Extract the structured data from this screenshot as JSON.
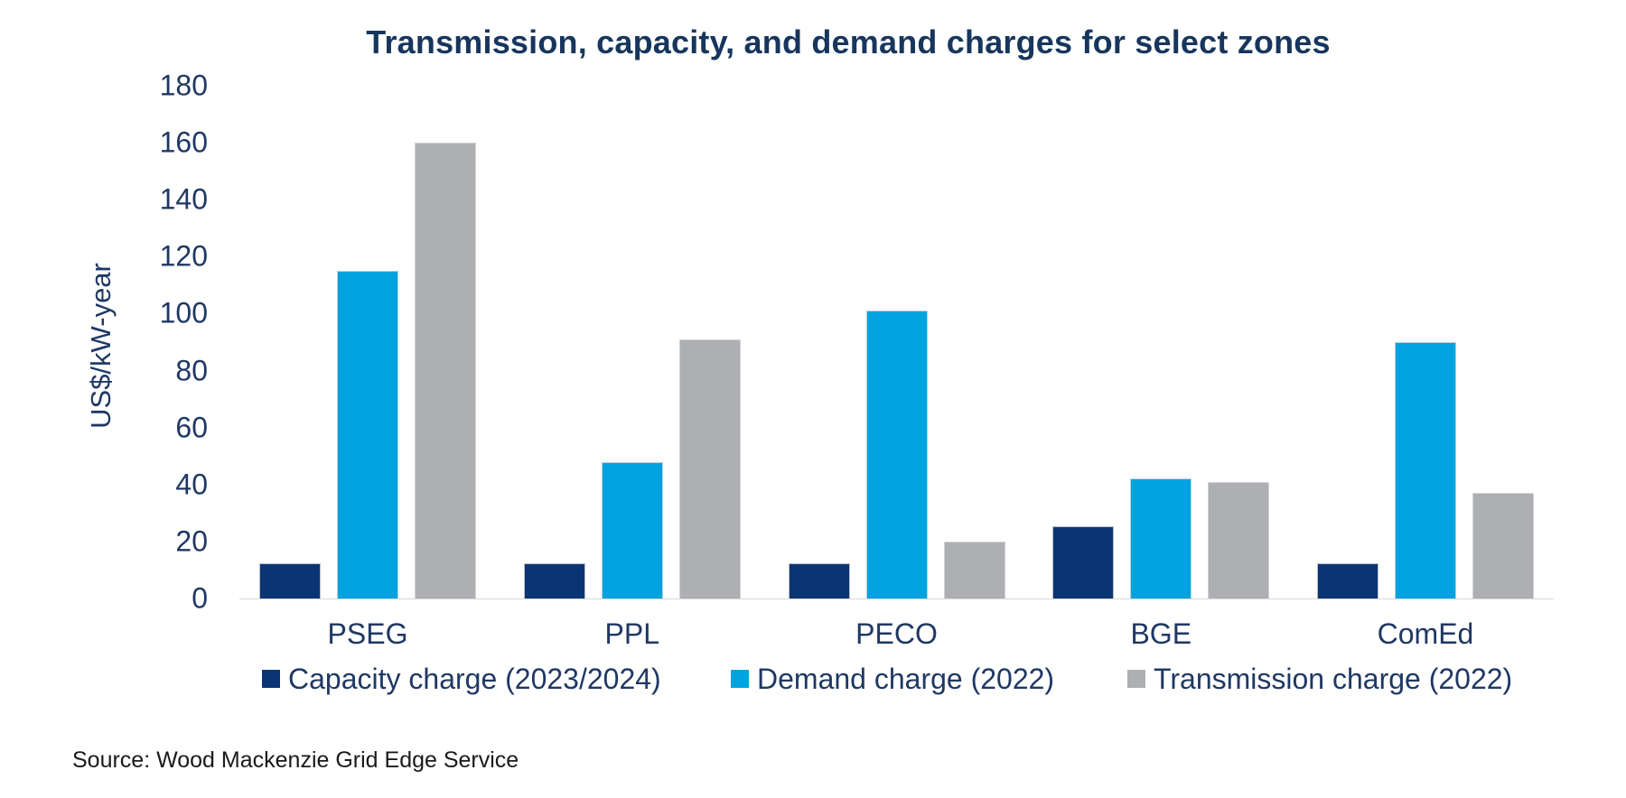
{
  "chart_data": {
    "type": "bar",
    "title": "Transmission, capacity, and demand charges for select zones",
    "ylabel": "US$/kW-year",
    "xlabel": "",
    "categories": [
      "PSEG",
      "PPL",
      "PECO",
      "BGE",
      "ComEd"
    ],
    "series": [
      {
        "name": "Capacity charge (2023/2024)",
        "color": "#0B3474",
        "values": [
          12.5,
          12.5,
          12.5,
          25.5,
          12.5
        ]
      },
      {
        "name": "Demand charge (2022)",
        "color": "#00A3E0",
        "values": [
          115,
          48,
          101,
          42,
          90
        ]
      },
      {
        "name": "Transmission charge (2022)",
        "color": "#AEAFB2",
        "values": [
          160,
          91,
          20,
          41,
          37
        ]
      }
    ],
    "ylim": [
      0,
      180
    ],
    "yticks": [
      0,
      20,
      40,
      60,
      80,
      100,
      120,
      140,
      160,
      180
    ],
    "grid": false,
    "legend_position": "bottom"
  },
  "source": {
    "text": "Source: Wood Mackenzie Grid Edge Service"
  },
  "colors": {
    "title_text": "#17365D",
    "axis_text": "#1F3864",
    "source_text": "#1A1A1A",
    "bar_border": "#D9D9D9"
  }
}
